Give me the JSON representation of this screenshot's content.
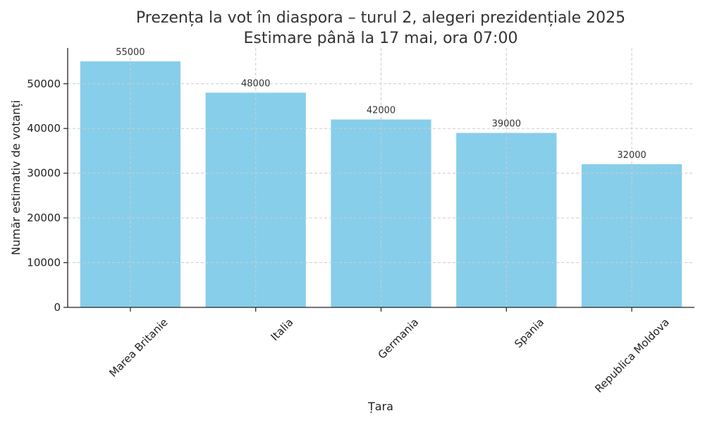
{
  "chart_data": {
    "type": "bar",
    "title": "Prezența la vot în diaspora – turul 2, alegeri prezidențiale 2025",
    "subtitle": "Estimare până la 17 mai, ora 07:00",
    "xlabel": "Țara",
    "ylabel": "Număr estimativ de votanți",
    "categories": [
      "Marea Britanie",
      "Italia",
      "Germania",
      "Spania",
      "Republica Moldova"
    ],
    "values": [
      55000,
      48000,
      42000,
      39000,
      32000
    ],
    "data_labels": [
      "55000",
      "48000",
      "42000",
      "39000",
      "32000"
    ],
    "ylim": [
      0,
      58000
    ],
    "yticks": [
      0,
      10000,
      20000,
      30000,
      40000,
      50000
    ],
    "ytick_labels": [
      "0",
      "10000",
      "20000",
      "30000",
      "40000",
      "50000"
    ],
    "grid": true,
    "colors": {
      "bar": "#87CEEB"
    }
  }
}
